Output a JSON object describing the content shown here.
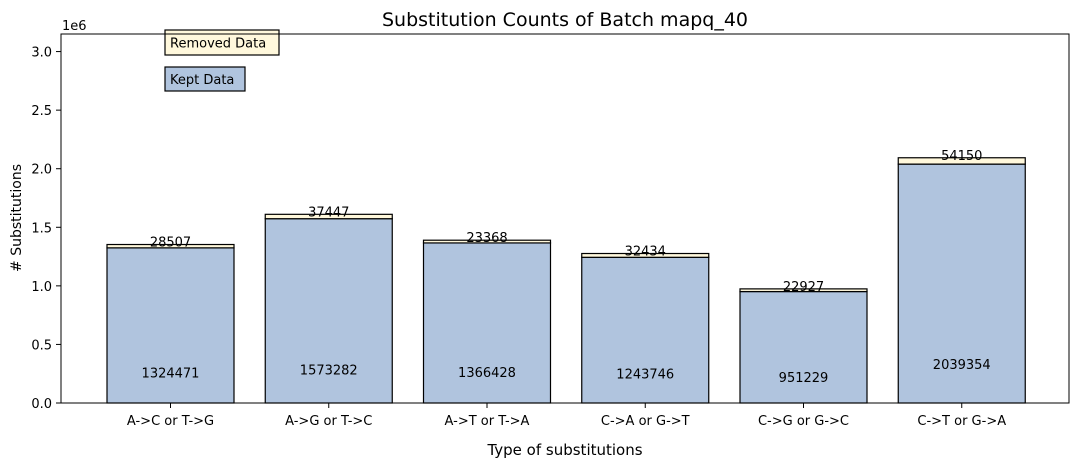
{
  "chart_data": {
    "type": "bar",
    "title": "Substitution Counts of Batch mapq_40",
    "xlabel": "Type of substitutions",
    "ylabel": "# Substitutions",
    "y_offset_text": "1e6",
    "ylim": [
      0,
      3150000
    ],
    "yticks": [
      0,
      500000,
      1000000,
      1500000,
      2000000,
      2500000,
      3000000
    ],
    "ytick_labels": [
      "0.0",
      "0.5",
      "1.0",
      "1.5",
      "2.0",
      "2.5",
      "3.0"
    ],
    "stacked": true,
    "categories": [
      "A->C or T->G",
      "A->G or T->C",
      "A->T or T->A",
      "C->A or G->T",
      "C->G or G->C",
      "C->T or G->A"
    ],
    "series": [
      {
        "name": "Kept Data",
        "color": "#b0c4de",
        "values": [
          1324471,
          1573282,
          1366428,
          1243746,
          951229,
          2039354
        ]
      },
      {
        "name": "Removed Data",
        "color": "#fff8dc",
        "values": [
          28507,
          37447,
          23368,
          32434,
          22927,
          54150
        ]
      }
    ],
    "legend": {
      "placement": "top-left"
    },
    "grid": false
  }
}
